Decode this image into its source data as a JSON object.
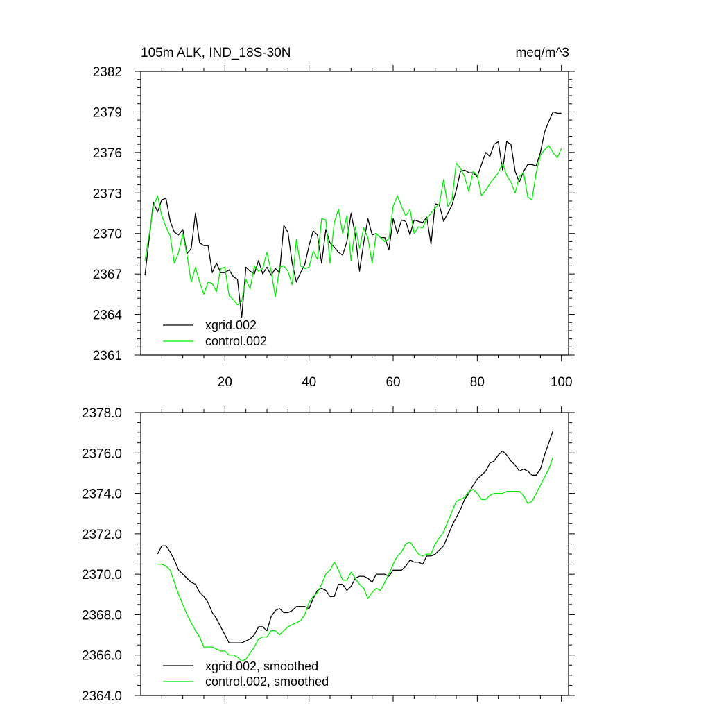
{
  "colors": {
    "xgrid": "#000000",
    "control": "#00ee00",
    "axis": "#000000",
    "background": "#ffffff"
  },
  "chart_data": [
    {
      "type": "line",
      "title_left": "105m ALK, IND_18S-30N",
      "title_right": "meq/m^3",
      "xlabel": "",
      "ylabel": "",
      "xlim": [
        0,
        101.7
      ],
      "ylim": [
        2361,
        2382
      ],
      "x_ticks": [
        20,
        40,
        60,
        80,
        100
      ],
      "x_tick_labels": [
        "20",
        "40",
        "60",
        "80",
        "100"
      ],
      "y_ticks": [
        2361,
        2364,
        2367,
        2370,
        2373,
        2376,
        2379,
        2382
      ],
      "y_tick_labels": [
        "2361",
        "2364",
        "2367",
        "2370",
        "2373",
        "2376",
        "2379",
        "2382"
      ],
      "legend_position": "bottom-left",
      "x": [
        1,
        2,
        3,
        4,
        5,
        6,
        7,
        8,
        9,
        10,
        11,
        12,
        13,
        14,
        15,
        16,
        17,
        18,
        19,
        20,
        21,
        22,
        23,
        24,
        25,
        26,
        27,
        28,
        29,
        30,
        31,
        32,
        33,
        34,
        35,
        36,
        37,
        38,
        39,
        40,
        41,
        42,
        43,
        44,
        45,
        46,
        47,
        48,
        49,
        50,
        51,
        52,
        53,
        54,
        55,
        56,
        57,
        58,
        59,
        60,
        61,
        62,
        63,
        64,
        65,
        66,
        67,
        68,
        69,
        70,
        71,
        72,
        73,
        74,
        75,
        76,
        77,
        78,
        79,
        80,
        81,
        82,
        83,
        84,
        85,
        86,
        87,
        88,
        89,
        90,
        91,
        92,
        93,
        94,
        95,
        96,
        97,
        98,
        99,
        100
      ],
      "series": [
        {
          "name": "xgrid.002",
          "color": "#000000",
          "values": [
            2366.9,
            2369.6,
            2372.3,
            2371.6,
            2372.5,
            2372.6,
            2370.9,
            2370.1,
            2369.9,
            2370.3,
            2368.5,
            2368.9,
            2371.5,
            2369.3,
            2369.1,
            2369.1,
            2367.1,
            2367.8,
            2367.1,
            2367.1,
            2367.3,
            2366.8,
            2366.6,
            2363.8,
            2367.5,
            2367.2,
            2367.0,
            2368.0,
            2367.0,
            2367.5,
            2366.9,
            2367.4,
            2367.1,
            2370.6,
            2370.1,
            2367.8,
            2366.4,
            2367.1,
            2367.7,
            2369.1,
            2370.2,
            2369.9,
            2367.8,
            2370.3,
            2369.3,
            2369.0,
            2368.6,
            2368.4,
            2369.4,
            2371.5,
            2369.9,
            2367.2,
            2369.3,
            2371.1,
            2369.9,
            2370.0,
            2369.7,
            2369.7,
            2368.8,
            2371.1,
            2370.0,
            2371.0,
            2370.9,
            2369.9,
            2371.0,
            2370.9,
            2370.8,
            2371.2,
            2369.2,
            2372.2,
            2372.1,
            2370.9,
            2371.5,
            2372.1,
            2373.2,
            2374.6,
            2374.7,
            2374.5,
            2374.5,
            2374.2,
            2375.1,
            2376.0,
            2375.7,
            2376.6,
            2376.8,
            2374.7,
            2376.8,
            2376.6,
            2374.6,
            2373.8,
            2374.6,
            2375.1,
            2375.1,
            2375.0,
            2376.0,
            2377.5,
            2378.3,
            2379.0,
            2378.9,
            2378.9
          ]
        },
        {
          "name": "control.002",
          "color": "#00ee00",
          "values": [
            2368.0,
            2369.9,
            2372.0,
            2372.8,
            2371.3,
            2370.5,
            2369.8,
            2367.8,
            2368.6,
            2370.0,
            2368.4,
            2366.4,
            2367.5,
            2366.4,
            2365.5,
            2366.4,
            2366.3,
            2365.7,
            2367.4,
            2367.5,
            2365.4,
            2365.1,
            2364.7,
            2365.0,
            2366.6,
            2365.9,
            2367.6,
            2367.2,
            2367.4,
            2368.6,
            2367.2,
            2365.3,
            2367.5,
            2367.6,
            2367.2,
            2366.2,
            2369.6,
            2367.6,
            2367.4,
            2367.5,
            2368.7,
            2368.1,
            2371.1,
            2371.0,
            2367.8,
            2370.8,
            2371.8,
            2370.0,
            2371.3,
            2368.0,
            2370.5,
            2368.9,
            2370.4,
            2369.7,
            2367.8,
            2370.0,
            2369.7,
            2369.4,
            2369.6,
            2372.0,
            2372.8,
            2372.0,
            2371.3,
            2371.8,
            2370.0,
            2370.5,
            2370.4,
            2371.1,
            2371.5,
            2371.9,
            2372.2,
            2374.0,
            2372.0,
            2372.5,
            2375.2,
            2374.8,
            2374.2,
            2373.1,
            2374.6,
            2374.3,
            2372.8,
            2373.2,
            2373.7,
            2374.1,
            2374.5,
            2375.2,
            2374.3,
            2373.8,
            2373.0,
            2374.2,
            2374.5,
            2372.7,
            2372.5,
            2374.5,
            2375.8,
            2376.2,
            2376.5,
            2376.0,
            2375.6,
            2376.3
          ]
        }
      ],
      "legend": [
        "xgrid.002",
        "control.002"
      ]
    },
    {
      "type": "line",
      "xlabel": "",
      "ylabel": "",
      "xlim": [
        0,
        101.7
      ],
      "ylim": [
        2364,
        2378
      ],
      "x_ticks": [
        20,
        40,
        60,
        80,
        100
      ],
      "y_ticks": [
        2364,
        2366,
        2368,
        2370,
        2372,
        2374,
        2376,
        2378
      ],
      "y_tick_labels": [
        "2364.0",
        "2366.0",
        "2368.0",
        "2370.0",
        "2372.0",
        "2374.0",
        "2376.0",
        "2378.0"
      ],
      "legend_position": "bottom-left",
      "x": [
        4,
        5,
        6,
        7,
        8,
        9,
        10,
        11,
        12,
        13,
        14,
        15,
        16,
        17,
        18,
        19,
        20,
        21,
        22,
        23,
        24,
        25,
        26,
        27,
        28,
        29,
        30,
        31,
        32,
        33,
        34,
        35,
        36,
        37,
        38,
        39,
        40,
        41,
        42,
        43,
        44,
        45,
        46,
        47,
        48,
        49,
        50,
        51,
        52,
        53,
        54,
        55,
        56,
        57,
        58,
        59,
        60,
        61,
        62,
        63,
        64,
        65,
        66,
        67,
        68,
        69,
        70,
        71,
        72,
        73,
        74,
        75,
        76,
        77,
        78,
        79,
        80,
        81,
        82,
        83,
        84,
        85,
        86,
        87,
        88,
        89,
        90,
        91,
        92,
        93,
        94,
        95,
        96,
        97,
        98
      ],
      "series": [
        {
          "name": "xgrid.002, smoothed",
          "color": "#000000",
          "values": [
            2371.0,
            2371.4,
            2371.4,
            2371.1,
            2370.7,
            2370.2,
            2370.0,
            2369.8,
            2369.6,
            2369.5,
            2369.1,
            2368.9,
            2368.6,
            2368.1,
            2367.8,
            2367.4,
            2367.0,
            2366.6,
            2366.6,
            2366.6,
            2366.6,
            2366.7,
            2366.8,
            2367.0,
            2367.4,
            2367.4,
            2367.2,
            2367.9,
            2368.2,
            2368.3,
            2368.1,
            2368.1,
            2368.2,
            2368.4,
            2368.4,
            2368.4,
            2368.3,
            2368.8,
            2369.2,
            2369.3,
            2369.2,
            2368.9,
            2368.9,
            2369.5,
            2369.5,
            2369.2,
            2369.4,
            2369.8,
            2369.9,
            2369.9,
            2369.8,
            2369.6,
            2370.0,
            2370.0,
            2370.0,
            2369.9,
            2370.2,
            2370.2,
            2370.2,
            2370.4,
            2370.7,
            2370.6,
            2370.6,
            2370.5,
            2370.9,
            2370.9,
            2371.0,
            2371.2,
            2371.4,
            2371.9,
            2372.4,
            2372.8,
            2373.2,
            2373.7,
            2374.0,
            2374.4,
            2374.7,
            2374.9,
            2375.1,
            2375.5,
            2375.6,
            2375.9,
            2376.1,
            2375.9,
            2375.6,
            2375.4,
            2375.1,
            2375.2,
            2375.1,
            2374.9,
            2374.9,
            2375.2,
            2375.9,
            2376.5,
            2377.1
          ]
        },
        {
          "name": "control.002, smoothed",
          "color": "#00ee00",
          "values": [
            2370.5,
            2370.5,
            2370.4,
            2370.2,
            2369.6,
            2369.0,
            2368.5,
            2368.0,
            2367.6,
            2367.2,
            2366.9,
            2366.4,
            2366.4,
            2366.4,
            2366.3,
            2366.2,
            2366.2,
            2366.0,
            2366.0,
            2365.9,
            2365.7,
            2365.8,
            2366.1,
            2366.4,
            2366.8,
            2366.9,
            2366.9,
            2367.2,
            2367.2,
            2367.0,
            2367.2,
            2367.4,
            2367.5,
            2367.6,
            2367.7,
            2368.0,
            2368.6,
            2368.9,
            2369.1,
            2369.5,
            2370.0,
            2370.2,
            2370.6,
            2370.2,
            2369.7,
            2369.7,
            2370.1,
            2369.8,
            2369.5,
            2369.3,
            2368.8,
            2369.1,
            2369.3,
            2369.2,
            2369.6,
            2370.0,
            2370.5,
            2370.9,
            2371.1,
            2371.5,
            2371.6,
            2371.3,
            2371.0,
            2370.9,
            2371.0,
            2371.0,
            2371.5,
            2371.8,
            2372.1,
            2372.6,
            2373.1,
            2373.6,
            2373.7,
            2373.8,
            2374.1,
            2374.2,
            2374.0,
            2373.7,
            2373.7,
            2373.9,
            2374.0,
            2374.0,
            2374.0,
            2374.1,
            2374.1,
            2374.1,
            2374.1,
            2373.9,
            2373.5,
            2373.6,
            2374.0,
            2374.4,
            2374.8,
            2375.2,
            2375.8
          ]
        }
      ],
      "legend": [
        "xgrid.002, smoothed",
        "control.002, smoothed"
      ]
    }
  ]
}
